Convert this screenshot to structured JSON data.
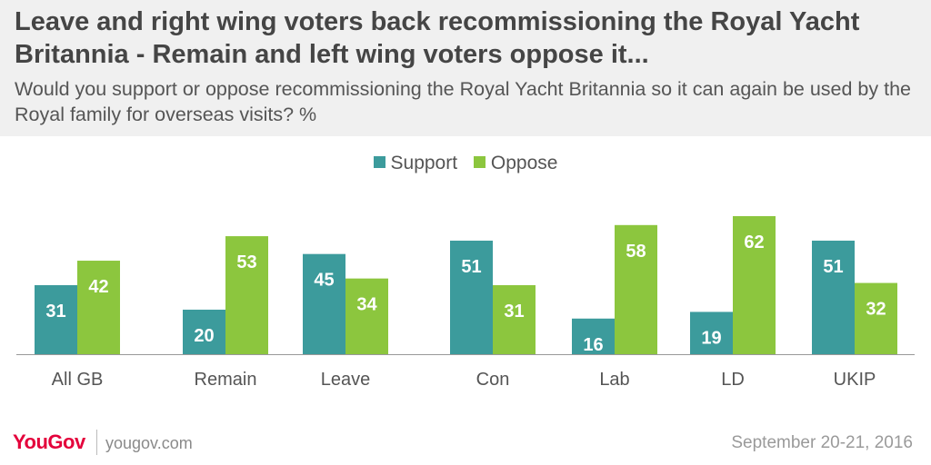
{
  "header": {
    "title": "Leave and right wing voters back recommissioning the Royal Yacht Britannia - Remain and left wing voters oppose it...",
    "subtitle": "Would you support or oppose recommissioning the Royal Yacht Britannia so it can again be used by the Royal family for overseas visits? %"
  },
  "colors": {
    "support": "#3c9b9c",
    "oppose": "#8cc63e",
    "axis": "#999999",
    "header_bg": "#f0f0f0",
    "brand": "#e4003b"
  },
  "chart_data": {
    "type": "bar",
    "categories": [
      "All GB",
      "Remain",
      "Leave",
      "Con",
      "Lab",
      "LD",
      "UKIP"
    ],
    "series": [
      {
        "name": "Support",
        "values": [
          31,
          20,
          45,
          51,
          16,
          19,
          51
        ]
      },
      {
        "name": "Oppose",
        "values": [
          42,
          53,
          34,
          31,
          58,
          62,
          32
        ]
      }
    ],
    "ylim": [
      0,
      62
    ],
    "legend": "top-center",
    "grid": false,
    "data_labels": true
  },
  "footer": {
    "logo": "YouGov",
    "url": "yougov.com",
    "date": "September 20-21, 2016"
  }
}
